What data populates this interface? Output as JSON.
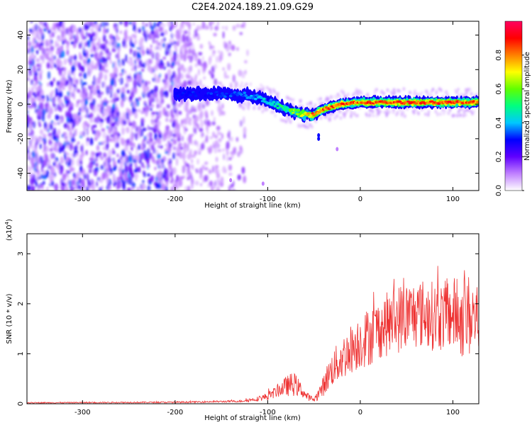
{
  "title": "C2E4.2024.189.21.09.G29",
  "chart_data": [
    {
      "type": "heatmap",
      "name": "spectrogram",
      "xlabel": "Height of straight line (km)",
      "ylabel": "Frequency (Hz)",
      "xlim": [
        -360,
        128
      ],
      "ylim": [
        -50,
        48
      ],
      "xticks": [
        -300,
        -200,
        -100,
        0,
        100
      ],
      "yticks": [
        -40,
        -20,
        0,
        20,
        40
      ],
      "ridge": {
        "x": [
          -200,
          -160,
          -120,
          -100,
          -80,
          -60,
          -50,
          -40,
          -20,
          0,
          20,
          50,
          80,
          100,
          128
        ],
        "y": [
          6,
          6,
          5,
          2,
          -3,
          -6,
          -6,
          -3,
          0,
          1,
          1,
          1,
          1,
          1,
          1
        ],
        "amplitude": [
          0.3,
          0.32,
          0.38,
          0.45,
          0.55,
          0.75,
          0.85,
          0.85,
          0.9,
          0.85,
          0.9,
          0.9,
          0.9,
          0.9,
          0.85
        ]
      },
      "noise_region_x": [
        -360,
        -140
      ],
      "colorbar": {
        "label": "Normalized spectral amplitude",
        "range": [
          0,
          1
        ],
        "ticks": [
          "0.0",
          "0.2",
          "0.4",
          "0.6",
          "0.8"
        ],
        "colors": [
          "#ffffff",
          "#c080ff",
          "#6000ff",
          "#0000ff",
          "#00c8ff",
          "#00ff80",
          "#60ff00",
          "#ffff00",
          "#ff8000",
          "#ff0000",
          "#ff0060"
        ]
      }
    },
    {
      "type": "line",
      "name": "snr",
      "xlabel": "Height of straight line (km)",
      "ylabel": "SNR (10 * v/v)",
      "yscale_label": "(x10",
      "yscale_exp": "4",
      "yscale_close": ")",
      "xlim": [
        -360,
        128
      ],
      "ylim": [
        0,
        3.4
      ],
      "xticks": [
        -300,
        -200,
        -100,
        0,
        100
      ],
      "yticks": [
        0,
        1,
        2,
        3
      ],
      "color": "#ee3333",
      "envelope": {
        "x": [
          -360,
          -200,
          -130,
          -110,
          -100,
          -90,
          -80,
          -72,
          -65,
          -58,
          -50,
          -45,
          -40,
          -35,
          -30,
          -20,
          -10,
          0,
          10,
          20,
          30,
          40,
          50,
          60,
          70,
          80,
          90,
          100,
          110,
          115,
          120,
          128
        ],
        "mean": [
          0.02,
          0.03,
          0.05,
          0.1,
          0.15,
          0.25,
          0.35,
          0.4,
          0.3,
          0.15,
          0.08,
          0.2,
          0.35,
          0.55,
          0.7,
          0.9,
          1.1,
          1.25,
          1.35,
          1.5,
          1.6,
          1.7,
          1.75,
          1.8,
          1.8,
          1.75,
          1.75,
          1.8,
          1.7,
          1.75,
          1.75,
          1.7
        ],
        "spread": [
          0.01,
          0.015,
          0.02,
          0.05,
          0.08,
          0.12,
          0.2,
          0.25,
          0.15,
          0.08,
          0.05,
          0.12,
          0.2,
          0.3,
          0.35,
          0.45,
          0.5,
          0.55,
          0.6,
          0.6,
          0.65,
          0.7,
          0.7,
          0.7,
          0.7,
          0.7,
          0.7,
          0.75,
          0.8,
          0.9,
          0.8,
          0.75
        ]
      }
    }
  ]
}
